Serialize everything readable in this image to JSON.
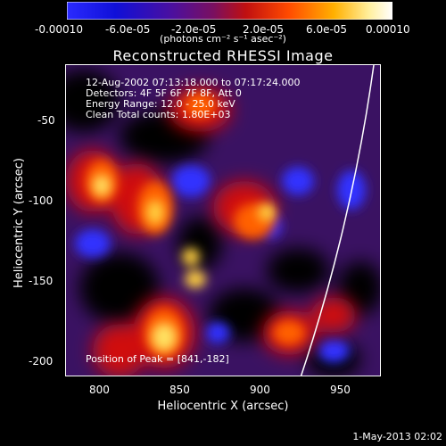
{
  "colorbar": {
    "tick_labels": [
      "-0.00010",
      "-6.0e-05",
      "-2.0e-05",
      "2.0e-05",
      "6.0e-05",
      "0.00010"
    ],
    "units_label": "(photons cm⁻² s⁻¹ asec⁻²)",
    "colors": [
      "#1a1aff",
      "#0000c8",
      "#6a1aa8",
      "#b01a40",
      "#ff3a00",
      "#ffa000",
      "#fff8c0",
      "#ffffff"
    ]
  },
  "plot": {
    "title": "Reconstructed RHESSI Image",
    "xlabel": "Heliocentric X (arcsec)",
    "ylabel": "Heliocentric Y (arcsec)",
    "x_ticks": [
      "800",
      "850",
      "900",
      "950"
    ],
    "y_ticks": [
      "-50",
      "-100",
      "-150",
      "-200"
    ],
    "annotations": [
      "12-Aug-2002 07:13:18.000 to 07:17:24.000",
      "Detectors: 4F 5F 6F 7F 8F, Att 0",
      "Energy Range: 12.0 - 25.0 keV",
      "Clean     Total counts: 1.80E+03"
    ],
    "peak_label": "Position of Peak = [841,-182]"
  },
  "footer": {
    "timestamp": "1-May-2013 02:02"
  }
}
